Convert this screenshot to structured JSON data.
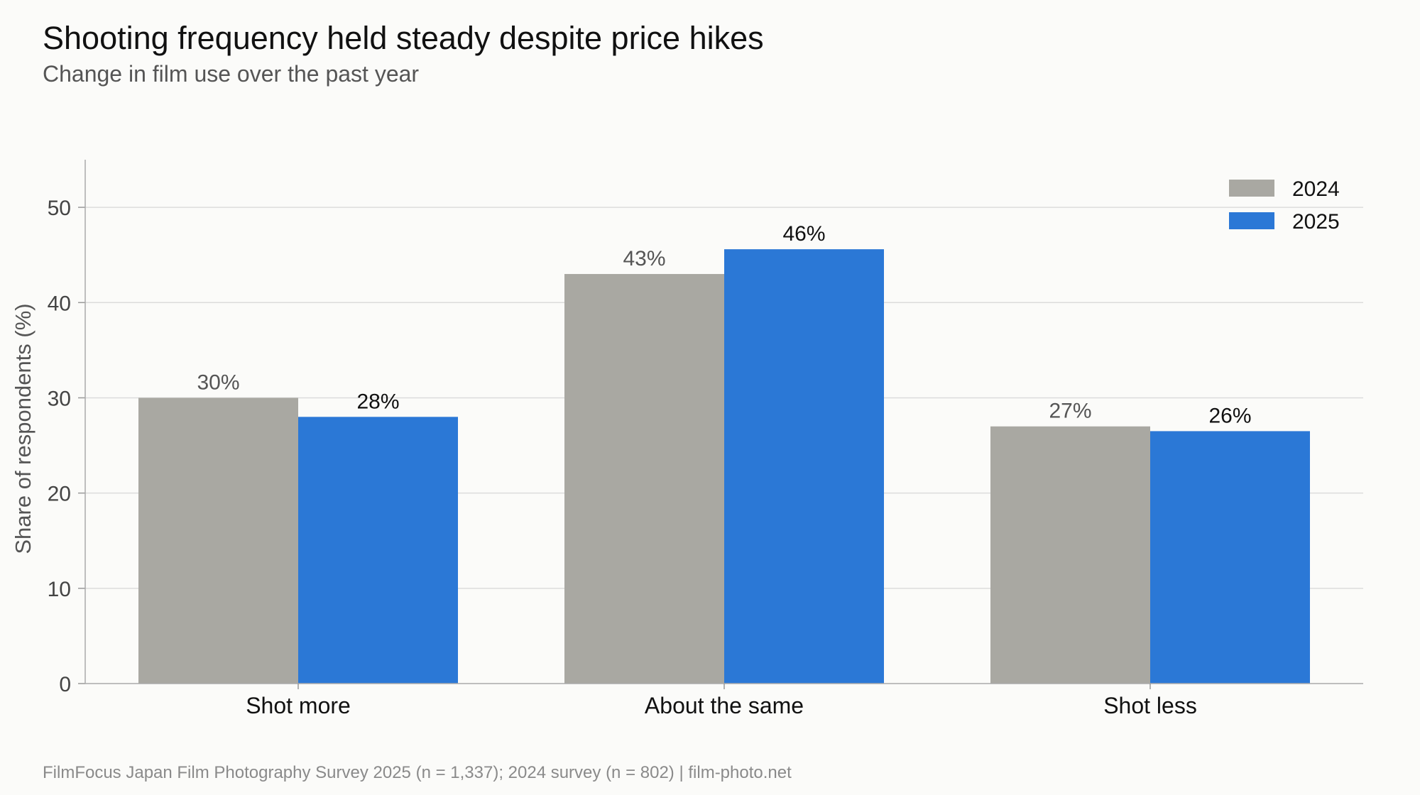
{
  "header": {
    "title": "Shooting frequency held steady despite price hikes",
    "subtitle": "Change in film use over the past year"
  },
  "footer": {
    "source": "FilmFocus Japan Film Photography Survey 2025 (n = 1,337); 2024 survey (n = 802)  |  film-photo.net"
  },
  "chart_data": {
    "type": "bar",
    "title": "Shooting frequency held steady despite price hikes",
    "subtitle": "Change in film use over the past year",
    "categories": [
      "Shot more",
      "About the same",
      "Shot less"
    ],
    "series": [
      {
        "name": "2024",
        "values": [
          30,
          43,
          27
        ],
        "labels": [
          "30%",
          "43%",
          "27%"
        ],
        "color": "#a9a8a2"
      },
      {
        "name": "2025",
        "values": [
          28,
          45.6,
          26.5
        ],
        "labels": [
          "28%",
          "46%",
          "26%"
        ],
        "color": "#2b78d6"
      }
    ],
    "xlabel": "",
    "ylabel": "Share of respondents (%)",
    "ylim": [
      0,
      55
    ],
    "yticks": [
      0,
      10,
      20,
      30,
      40,
      50
    ],
    "grid": true,
    "legend": "top-right",
    "colors": {
      "series_2024": "#a9a8a2",
      "series_2025": "#2b78d6"
    }
  }
}
